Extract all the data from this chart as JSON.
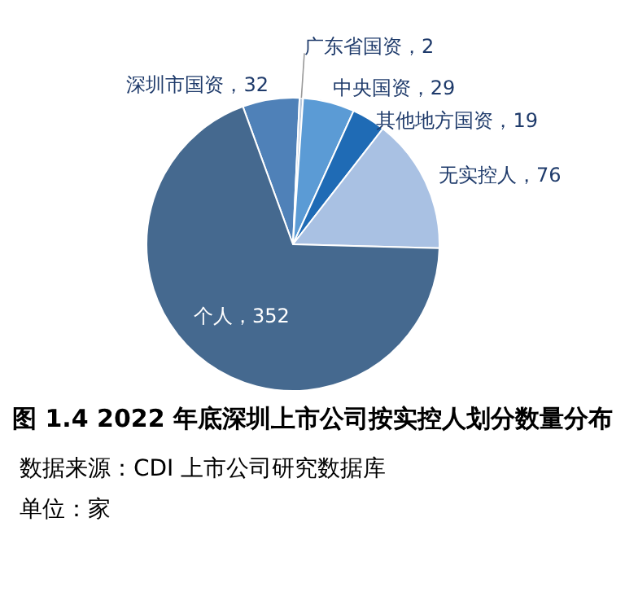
{
  "chart_data": {
    "type": "pie",
    "title": "图 1.4 2022 年底深圳上市公司按实控人划分数量分布",
    "categories": [
      "深圳市国资",
      "广东省国资",
      "中央国资",
      "其他地方国资",
      "无实控人",
      "个人"
    ],
    "values": [
      32,
      2,
      29,
      19,
      76,
      352
    ],
    "colors": [
      "#4f81b8",
      "#b8c8dc",
      "#5b9bd5",
      "#1f6bb5",
      "#a9c1e3",
      "#45698f"
    ],
    "value_labels": [
      "，32",
      "，2",
      "，29",
      "，19",
      "，76",
      "，352"
    ],
    "annotations": [
      "数据来源：CDI 上市公司研究数据库",
      "单位：家"
    ]
  }
}
